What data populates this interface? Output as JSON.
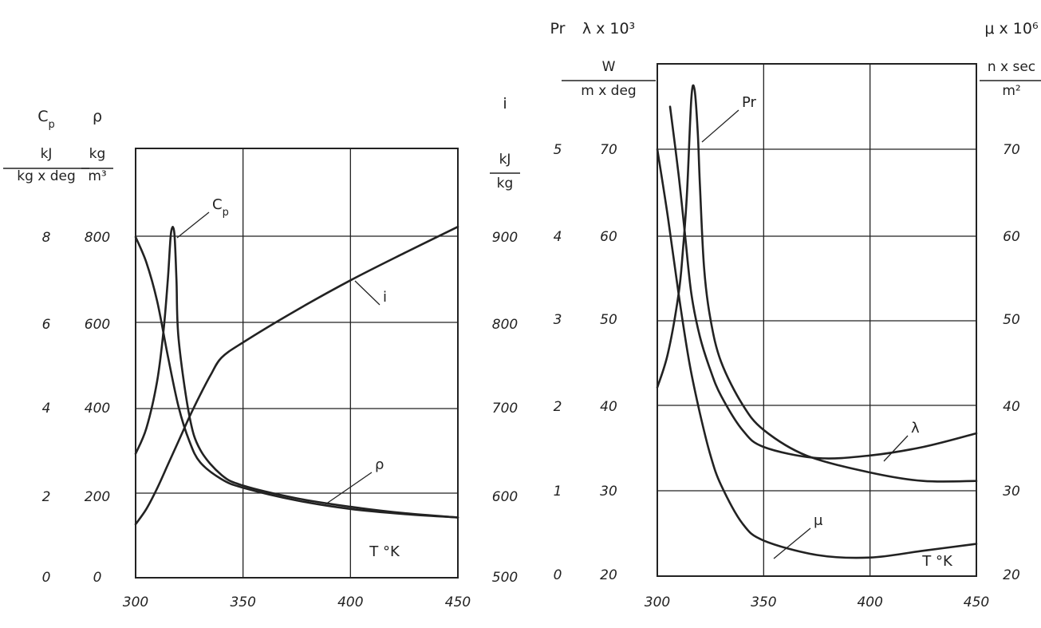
{
  "chart_data": [
    {
      "type": "line",
      "x_ticks": [
        "300",
        "350",
        "400",
        "450"
      ],
      "xlim": [
        300,
        450
      ],
      "x_unit": "T °K",
      "grid": true,
      "axes": [
        {
          "symbol": "C",
          "subscript": "p",
          "unit_num": "kJ",
          "unit_den": "kg x deg",
          "ticks": [
            "0",
            "2",
            "4",
            "6",
            "8"
          ],
          "range": [
            0,
            8
          ]
        },
        {
          "symbol": "ρ",
          "unit_num": "kg",
          "unit_den": "m³",
          "ticks": [
            "0",
            "200",
            "400",
            "600",
            "800"
          ],
          "range": [
            0,
            800
          ]
        },
        {
          "symbol": "i",
          "unit_num": "kJ",
          "unit_den": "kg",
          "ticks": [
            "500",
            "600",
            "700",
            "800",
            "900"
          ],
          "range": [
            500,
            900
          ]
        }
      ],
      "series": [
        {
          "name": "Cp",
          "axis": 0,
          "x": [
            300,
            305,
            310,
            313,
            315,
            316.5,
            318,
            319,
            320,
            325,
            330,
            340,
            350,
            375,
            400,
            425,
            450
          ],
          "y": [
            2.9,
            3.5,
            4.6,
            5.8,
            7.0,
            8.1,
            8.1,
            7.0,
            5.6,
            3.8,
            3.0,
            2.4,
            2.15,
            1.85,
            1.65,
            1.5,
            1.4
          ]
        },
        {
          "name": "ρ",
          "axis": 1,
          "x": [
            300,
            305,
            310,
            315,
            320,
            325,
            330,
            340,
            350,
            375,
            400,
            425,
            450
          ],
          "y": [
            800,
            740,
            650,
            520,
            400,
            320,
            270,
            230,
            210,
            180,
            160,
            148,
            140
          ]
        },
        {
          "name": "i",
          "axis": 2,
          "x": [
            300,
            305,
            310,
            315,
            320,
            325,
            330,
            335,
            340,
            350,
            375,
            400,
            425,
            450
          ],
          "y": [
            562,
            580,
            604,
            632,
            660,
            688,
            714,
            738,
            758,
            776,
            814,
            849,
            881,
            912
          ]
        }
      ]
    },
    {
      "type": "line",
      "x_ticks": [
        "300",
        "350",
        "400",
        "450"
      ],
      "xlim": [
        300,
        450
      ],
      "x_unit": "T °K",
      "grid": true,
      "axes": [
        {
          "symbol": "Pr",
          "ticks": [
            "0",
            "1",
            "2",
            "3",
            "4",
            "5"
          ],
          "range": [
            0,
            5
          ]
        },
        {
          "symbol": "λ x 10³",
          "unit_num": "W",
          "unit_den": "m x deg",
          "ticks": [
            "20",
            "30",
            "40",
            "50",
            "60",
            "70"
          ],
          "range": [
            20,
            70
          ]
        },
        {
          "symbol": "μ x 10⁶",
          "unit_num": "n x sec",
          "unit_den": "m²",
          "ticks": [
            "20",
            "30",
            "40",
            "50",
            "60",
            "70"
          ],
          "range": [
            20,
            70
          ]
        }
      ],
      "series": [
        {
          "name": "Pr",
          "axis": 0,
          "x": [
            300,
            305,
            310,
            312,
            314,
            316,
            317.5,
            319,
            320,
            322,
            325,
            330,
            340,
            350,
            370,
            400,
            425,
            450
          ],
          "y": [
            2.2,
            2.6,
            3.3,
            3.8,
            4.5,
            5.6,
            5.7,
            5.2,
            4.6,
            3.6,
            3.0,
            2.5,
            2.0,
            1.7,
            1.4,
            1.2,
            1.1,
            1.1
          ]
        },
        {
          "name": "λ",
          "axis": 1,
          "x": [
            306,
            310,
            313,
            316,
            320,
            325,
            330,
            340,
            350,
            375,
            400,
            425,
            450
          ],
          "y": [
            75,
            67,
            60,
            53,
            48,
            44,
            41,
            37,
            35,
            33.7,
            34,
            35,
            36.6
          ]
        },
        {
          "name": "μ",
          "axis": 2,
          "x": [
            300,
            305,
            310,
            315,
            320,
            325,
            330,
            340,
            350,
            375,
            400,
            425,
            450
          ],
          "y": [
            70,
            62,
            53,
            45,
            39,
            34,
            30.5,
            26,
            24,
            22.3,
            22,
            22.8,
            23.6
          ]
        }
      ]
    }
  ]
}
